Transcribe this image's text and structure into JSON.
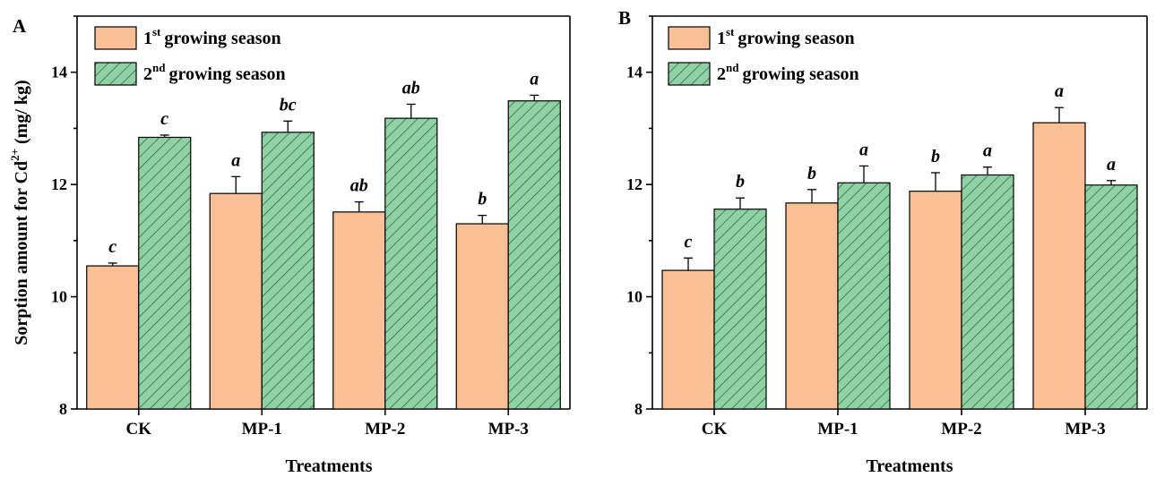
{
  "colors": {
    "season1": "#f9bf95",
    "season2": "#8fd1a4",
    "hatch": "#1f5a2c",
    "stroke": "#000000"
  },
  "chart_data": [
    {
      "type": "bar",
      "panel_label": "A",
      "categories": [
        "CK",
        "MP-1",
        "MP-2",
        "MP-3"
      ],
      "xlabel": "Treatments",
      "ylabel": "Sorption amount for Cd2+ (mg/ kg)",
      "ylim": [
        8,
        15
      ],
      "yticks": [
        8,
        10,
        12,
        14
      ],
      "legend_position": "top-left",
      "series": [
        {
          "name": "1st growing season",
          "legend_base": "1",
          "legend_sup": "st",
          "legend_rest": "growing season",
          "values": [
            10.55,
            11.84,
            11.51,
            11.3
          ],
          "errors": [
            0.05,
            0.3,
            0.18,
            0.15
          ],
          "letters": [
            "c",
            "a",
            "ab",
            "b"
          ]
        },
        {
          "name": "2nd growing season",
          "legend_base": "2",
          "legend_sup": "nd",
          "legend_rest": "growing season",
          "values": [
            12.84,
            12.93,
            13.18,
            13.49
          ],
          "errors": [
            0.04,
            0.2,
            0.25,
            0.1
          ],
          "letters": [
            "c",
            "bc",
            "ab",
            "a"
          ]
        }
      ]
    },
    {
      "type": "bar",
      "panel_label": "B",
      "categories": [
        "CK",
        "MP-1",
        "MP-2",
        "MP-3"
      ],
      "xlabel": "Treatments",
      "ylabel": "",
      "ylim": [
        8,
        15
      ],
      "yticks": [
        8,
        10,
        12,
        14
      ],
      "legend_position": "top-left",
      "series": [
        {
          "name": "1st growing season",
          "legend_base": "1",
          "legend_sup": "st",
          "legend_rest": "growing season",
          "values": [
            10.47,
            11.67,
            11.88,
            13.1
          ],
          "errors": [
            0.22,
            0.24,
            0.33,
            0.27
          ],
          "letters": [
            "c",
            "b",
            "b",
            "a"
          ]
        },
        {
          "name": "2nd growing season",
          "legend_base": "2",
          "legend_sup": "nd",
          "legend_rest": "growing season",
          "values": [
            11.56,
            12.03,
            12.17,
            11.99
          ],
          "errors": [
            0.2,
            0.3,
            0.14,
            0.08
          ],
          "letters": [
            "b",
            "a",
            "a",
            "a"
          ]
        }
      ]
    }
  ]
}
